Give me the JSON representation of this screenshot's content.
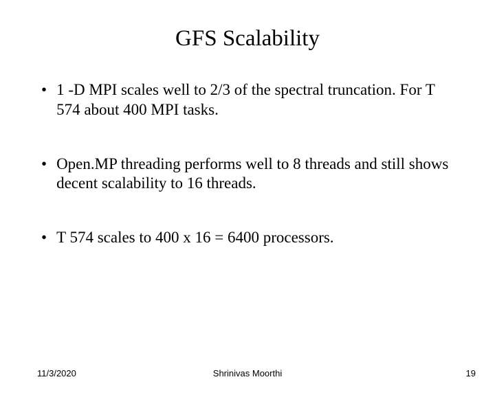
{
  "slide": {
    "title": "GFS Scalability",
    "bullets": [
      "1 -D MPI scales well to 2/3 of the spectral truncation.  For T 574 about 400 MPI tasks.",
      "Open.MP threading performs well to 8 threads and still shows decent scalability  to 16 threads.",
      "T 574 scales to 400 x 16 = 6400 processors."
    ],
    "footer": {
      "date": "11/3/2020",
      "author": "Shrinivas Moorthi",
      "page_number": "19"
    },
    "style": {
      "background_color": "#ffffff",
      "text_color": "#000000",
      "title_fontsize": 33,
      "bullet_fontsize": 23,
      "footer_fontsize": 13,
      "font_family_body": "Times New Roman",
      "font_family_footer": "Arial"
    }
  }
}
